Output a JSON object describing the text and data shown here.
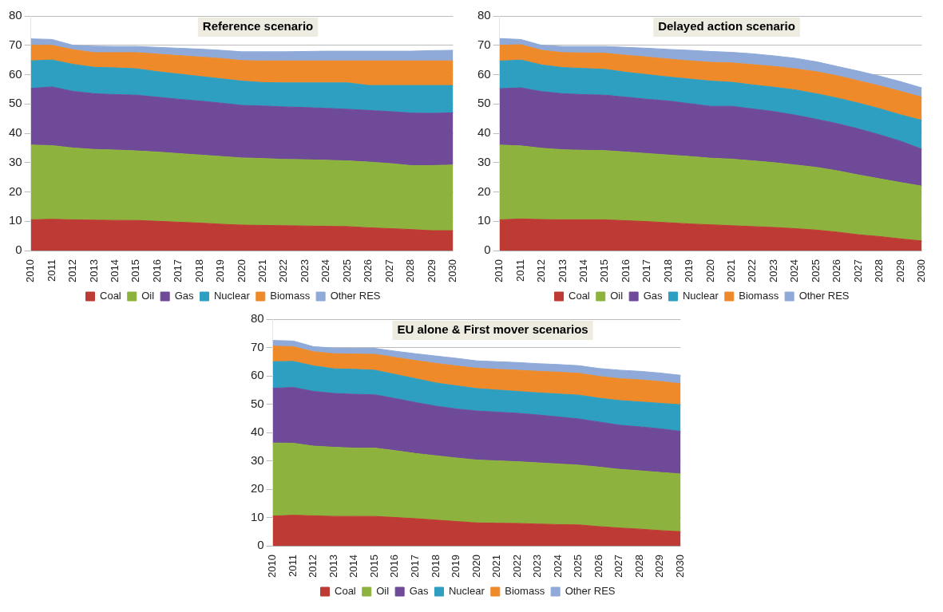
{
  "chart_data": [
    {
      "type": "area",
      "title": "Reference scenario",
      "stacked": true,
      "grid": "y",
      "legend": "bottom",
      "ylim": [
        0,
        80
      ],
      "yticks": [
        0,
        10,
        20,
        30,
        40,
        50,
        60,
        70,
        80
      ],
      "categories": [
        "2010",
        "2011",
        "2012",
        "2013",
        "2014",
        "2015",
        "2016",
        "2017",
        "2018",
        "2019",
        "2020",
        "2021",
        "2022",
        "2023",
        "2024",
        "2025",
        "2026",
        "2027",
        "2028",
        "2029",
        "2030"
      ],
      "series": [
        {
          "name": "Coal",
          "color": "#be3a34",
          "values": [
            10.5,
            10.7,
            10.5,
            10.4,
            10.3,
            10.3,
            10,
            9.7,
            9.4,
            9,
            8.7,
            8.6,
            8.5,
            8.4,
            8.3,
            8.2,
            7.8,
            7.5,
            7.2,
            6.8,
            6.8
          ]
        },
        {
          "name": "Oil",
          "color": "#8db33e",
          "values": [
            25.5,
            25.1,
            24.5,
            24.1,
            24,
            23.7,
            23.6,
            23.4,
            23.2,
            23.1,
            22.9,
            22.8,
            22.6,
            22.6,
            22.5,
            22.4,
            22.4,
            22.2,
            21.8,
            22.2,
            22.4
          ]
        },
        {
          "name": "Gas",
          "color": "#6f4a98",
          "values": [
            19.3,
            20,
            19.3,
            19,
            18.9,
            19,
            18.7,
            18.5,
            18.4,
            18.2,
            17.9,
            17.9,
            17.9,
            17.8,
            17.7,
            17.6,
            17.6,
            17.7,
            17.9,
            17.8,
            17.8
          ]
        },
        {
          "name": "Nuclear",
          "color": "#2e9fc0",
          "values": [
            9.4,
            9.2,
            9.2,
            9,
            9.1,
            9,
            8.7,
            8.6,
            8.4,
            8.3,
            8.3,
            8,
            8.2,
            8.4,
            8.7,
            9,
            8.5,
            8.9,
            9.4,
            9.5,
            9.3
          ]
        },
        {
          "name": "Biomass",
          "color": "#ee8a2a",
          "values": [
            5.3,
            5,
            5,
            5,
            5.2,
            5.5,
            6,
            6.3,
            6.6,
            6.9,
            7,
            7.4,
            7.5,
            7.5,
            7.5,
            7.5,
            8.4,
            8.4,
            8.4,
            8.4,
            8.4
          ]
        },
        {
          "name": "Other RES",
          "color": "#8faad8",
          "values": [
            2.2,
            2,
            1.5,
            2.2,
            2.1,
            2.1,
            2.3,
            2.5,
            2.7,
            2.8,
            3,
            3.1,
            3.1,
            3.2,
            3.3,
            3.3,
            3.3,
            3.3,
            3.3,
            3.5,
            3.6
          ]
        }
      ]
    },
    {
      "type": "area",
      "title": "Delayed action scenario",
      "stacked": true,
      "grid": "y",
      "legend": "bottom",
      "ylim": [
        0,
        80
      ],
      "yticks": [
        0,
        10,
        20,
        30,
        40,
        50,
        60,
        70,
        80
      ],
      "categories": [
        "2010",
        "2011",
        "2012",
        "2013",
        "2014",
        "2015",
        "2016",
        "2017",
        "2018",
        "2019",
        "2020",
        "2021",
        "2022",
        "2023",
        "2024",
        "2025",
        "2026",
        "2027",
        "2028",
        "2029",
        "2030"
      ],
      "series": [
        {
          "name": "Coal",
          "color": "#be3a34",
          "values": [
            10.5,
            10.8,
            10.6,
            10.5,
            10.5,
            10.5,
            10.2,
            9.9,
            9.5,
            9.1,
            8.8,
            8.5,
            8.2,
            7.9,
            7.5,
            7,
            6.3,
            5.4,
            4.8,
            4,
            3.3
          ]
        },
        {
          "name": "Oil",
          "color": "#8db33e",
          "values": [
            25.5,
            24.9,
            24.3,
            23.9,
            23.7,
            23.6,
            23.4,
            23.2,
            23.1,
            23,
            22.7,
            22.7,
            22.4,
            22.1,
            21.7,
            21.4,
            20.9,
            20.4,
            19.7,
            19.2,
            18.7
          ]
        },
        {
          "name": "Gas",
          "color": "#6f4a98",
          "values": [
            19.2,
            19.8,
            19.3,
            19.1,
            19,
            18.9,
            18.7,
            18.5,
            18.4,
            18,
            17.7,
            18,
            17.7,
            17.4,
            17,
            16.4,
            16.1,
            15.7,
            15,
            14.1,
            12.6
          ]
        },
        {
          "name": "Nuclear",
          "color": "#2e9fc0",
          "values": [
            9.4,
            9.5,
            9.1,
            8.9,
            8.9,
            8.8,
            8.5,
            8.4,
            8.2,
            8.4,
            8.6,
            8.2,
            8.2,
            8.3,
            8.6,
            8.7,
            8.7,
            8.8,
            8.9,
            9,
            9.8
          ]
        },
        {
          "name": "Biomass",
          "color": "#ee8a2a",
          "values": [
            5.4,
            5.2,
            5,
            5.1,
            5.3,
            5.5,
            5.8,
            6,
            6.1,
            6.2,
            6.4,
            6.6,
            6.9,
            7.1,
            7.2,
            7.5,
            7.6,
            7.6,
            7.8,
            8,
            7.9
          ]
        },
        {
          "name": "Other RES",
          "color": "#8faad8",
          "values": [
            2.3,
            1.8,
            1.7,
            2.1,
            2.2,
            2.3,
            2.7,
            3,
            3.3,
            3.6,
            3.7,
            3.6,
            3.7,
            3.6,
            3.6,
            3.4,
            3.2,
            3.3,
            3.3,
            3.3,
            3.2
          ]
        }
      ]
    },
    {
      "type": "area",
      "title": "EU alone & First mover scenarios",
      "stacked": true,
      "grid": "y",
      "legend": "bottom",
      "ylim": [
        0,
        80
      ],
      "yticks": [
        0,
        10,
        20,
        30,
        40,
        50,
        60,
        70,
        80
      ],
      "categories": [
        "2010",
        "2011",
        "2012",
        "2013",
        "2014",
        "2015",
        "2016",
        "2017",
        "2018",
        "2019",
        "2020",
        "2021",
        "2022",
        "2023",
        "2024",
        "2025",
        "2026",
        "2027",
        "2028",
        "2029",
        "2030"
      ],
      "series": [
        {
          "name": "Coal",
          "color": "#be3a34",
          "values": [
            10.5,
            10.8,
            10.6,
            10.4,
            10.4,
            10.4,
            10,
            9.6,
            9.1,
            8.6,
            8.1,
            8,
            7.9,
            7.7,
            7.5,
            7.4,
            6.8,
            6.3,
            5.9,
            5.4,
            5
          ]
        },
        {
          "name": "Oil",
          "color": "#8db33e",
          "values": [
            25.8,
            25.4,
            24.6,
            24.4,
            24.1,
            24.1,
            23.6,
            23,
            22.7,
            22.4,
            22.2,
            22,
            21.8,
            21.6,
            21.4,
            21.1,
            21,
            20.7,
            20.6,
            20.5,
            20.4
          ]
        },
        {
          "name": "Gas",
          "color": "#6f4a98",
          "values": [
            19.3,
            19.7,
            19.3,
            19,
            19,
            18.8,
            18.4,
            18,
            17.5,
            17.3,
            17.3,
            17.2,
            17.1,
            16.9,
            16.6,
            16.3,
            15.9,
            15.6,
            15.5,
            15.4,
            15
          ]
        },
        {
          "name": "Nuclear",
          "color": "#2e9fc0",
          "values": [
            9.4,
            9.2,
            9,
            8.7,
            8.8,
            8.7,
            8.5,
            8.4,
            8.2,
            8.2,
            7.9,
            7.8,
            7.7,
            7.8,
            8.1,
            8.4,
            8.4,
            8.7,
            8.8,
            9,
            9.4
          ]
        },
        {
          "name": "Biomass",
          "color": "#ee8a2a",
          "values": [
            5.5,
            5.2,
            5,
            5.3,
            5.4,
            5.6,
            6,
            6.4,
            6.9,
            7,
            7.2,
            7.3,
            7.5,
            7.6,
            7.7,
            7.7,
            7.7,
            7.7,
            7.8,
            7.7,
            7.4
          ]
        },
        {
          "name": "Other RES",
          "color": "#8faad8",
          "values": [
            2,
            2,
            1.8,
            2,
            2,
            2.1,
            2.2,
            2.4,
            2.6,
            2.7,
            2.6,
            2.7,
            2.7,
            2.7,
            2.7,
            2.7,
            2.8,
            3,
            3,
            3,
            3
          ]
        }
      ]
    }
  ]
}
